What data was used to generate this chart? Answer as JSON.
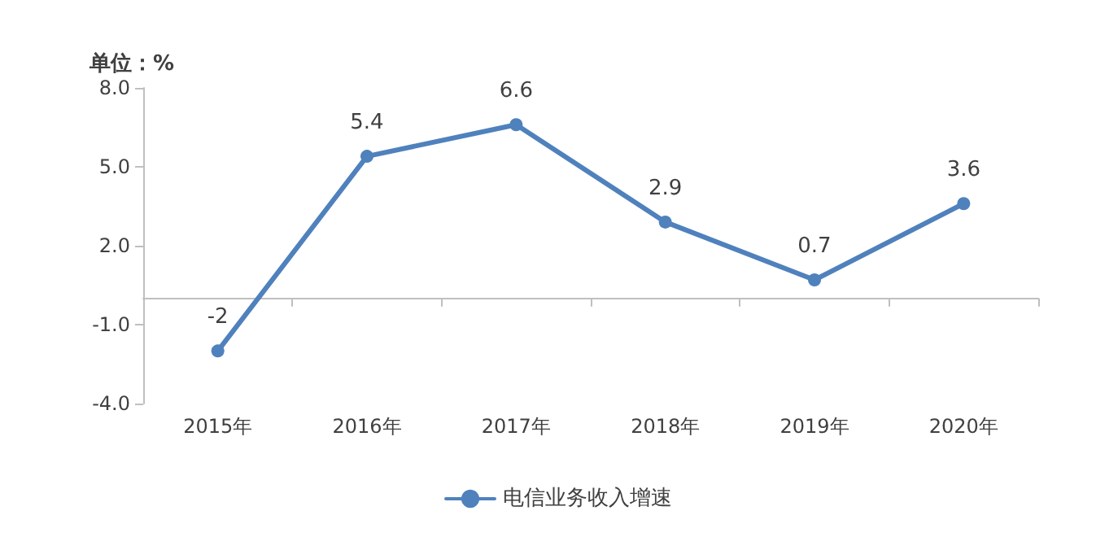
{
  "chart_data": {
    "type": "line",
    "ylabel": "单位：%",
    "categories": [
      "2015年",
      "2016年",
      "2017年",
      "2018年",
      "2019年",
      "2020年"
    ],
    "series": [
      {
        "name": "电信业务收入增速",
        "color": "#4f81bd",
        "values": [
          -2,
          5.4,
          6.6,
          2.9,
          0.7,
          3.6
        ]
      }
    ],
    "ylim": [
      -4,
      8
    ],
    "yticks": [
      {
        "value": -4,
        "label": "-4.0"
      },
      {
        "value": -1,
        "label": "-1.0"
      },
      {
        "value": 2,
        "label": "2.0"
      },
      {
        "value": 5,
        "label": "5.0"
      },
      {
        "value": 8,
        "label": "8.0"
      }
    ],
    "grid": false,
    "legend": "bottom",
    "marker": "circle",
    "line_style": "solid",
    "data_labels": true
  }
}
